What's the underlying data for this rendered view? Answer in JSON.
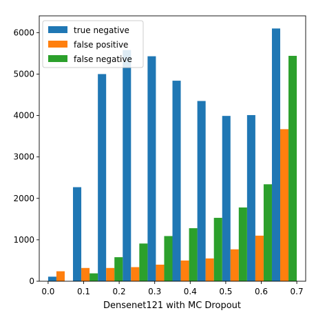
{
  "chart_data": {
    "type": "bar",
    "xlabel": "Densenet121 with MC Dropout",
    "ylabel": "",
    "title": "",
    "xlim": [
      -0.025,
      0.725
    ],
    "ylim": [
      0,
      6405
    ],
    "xticks": [
      0.0,
      0.1,
      0.2,
      0.3,
      0.4,
      0.5,
      0.6,
      0.7
    ],
    "xtick_labels": [
      "0.0",
      "0.1",
      "0.2",
      "0.3",
      "0.4",
      "0.5",
      "0.6",
      "0.7"
    ],
    "yticks": [
      0,
      1000,
      2000,
      3000,
      4000,
      5000,
      6000
    ],
    "ytick_labels": [
      "0",
      "1000",
      "2000",
      "3000",
      "4000",
      "5000",
      "6000"
    ],
    "bins": [
      0.0,
      0.07,
      0.14,
      0.21,
      0.28,
      0.35,
      0.42,
      0.49,
      0.56,
      0.63
    ],
    "bin_width": 0.07,
    "legend_position": "top-left",
    "series": [
      {
        "name": "true negative",
        "color": "#1f77b4",
        "values": [
          110,
          2270,
          5000,
          5580,
          5430,
          4840,
          4350,
          3990,
          4010,
          6100
        ]
      },
      {
        "name": "false positive",
        "color": "#ff7f0e",
        "values": [
          240,
          320,
          320,
          340,
          400,
          500,
          550,
          770,
          1100,
          3670
        ]
      },
      {
        "name": "false negative",
        "color": "#2ca02c",
        "values": [
          0,
          190,
          580,
          910,
          1090,
          1280,
          1530,
          1780,
          2340,
          5440
        ]
      }
    ]
  }
}
